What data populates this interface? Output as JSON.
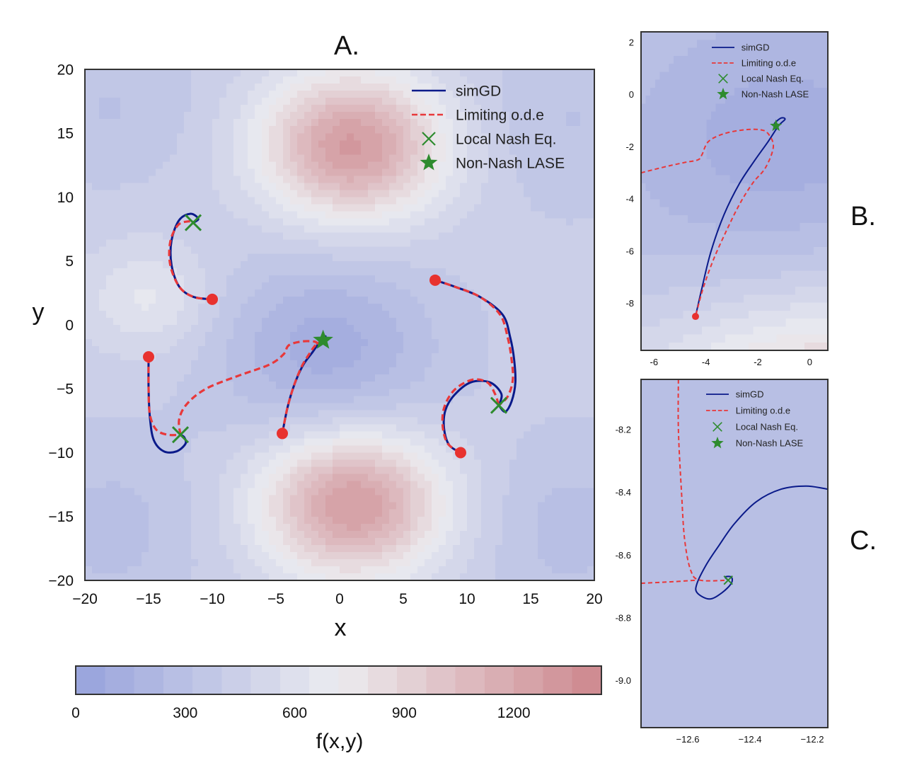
{
  "panel_letters": {
    "a": "A.",
    "b": "B.",
    "c": "C."
  },
  "colors": {
    "simgd": "#0a1a8a",
    "ode": "#e8383a",
    "nash": "#2e8b2e",
    "start": "#e8322f",
    "low": "#9ba6dd",
    "high": "#cf8c92",
    "frame": "#333333"
  },
  "legend": [
    "simGD",
    "Limiting o.d.e",
    "Local Nash Eq.",
    "Non-Nash LASE"
  ],
  "colorbar": {
    "label": "f(x,y)",
    "ticks": [
      0,
      300,
      600,
      900,
      1200
    ],
    "tick_labels": [
      "0",
      "300",
      "600",
      "900",
      "1200"
    ],
    "range": [
      0,
      1440
    ],
    "levels": 18
  },
  "chart_data": [
    {
      "id": "A",
      "type": "contour",
      "title": "A.",
      "xlabel": "x",
      "ylabel": "y",
      "xlim": [
        -20,
        20
      ],
      "ylim": [
        -20,
        20
      ],
      "xticks": [
        -20,
        -15,
        -10,
        -5,
        0,
        5,
        10,
        15,
        20
      ],
      "yticks": [
        -20,
        -15,
        -10,
        -5,
        0,
        5,
        10,
        15,
        20
      ],
      "xtick_labels": [
        "−20",
        "−15",
        "−10",
        "−5",
        "0",
        "5",
        "10",
        "15",
        "20"
      ],
      "ytick_labels": [
        "−20",
        "−15",
        "−10",
        "−5",
        "0",
        "5",
        "10",
        "15",
        "20"
      ],
      "legend": "top-right",
      "trajectories": [
        {
          "start": [
            -10,
            2
          ],
          "end": [
            -11.5,
            8
          ],
          "end_marker": "nash",
          "simgd": [
            [
              -10,
              2
            ],
            [
              -11.5,
              2.2
            ],
            [
              -12.6,
              3
            ],
            [
              -13.2,
              4.7
            ],
            [
              -13.2,
              6.6
            ],
            [
              -12.6,
              8.2
            ],
            [
              -11.7,
              8.7
            ],
            [
              -11.1,
              8.3
            ],
            [
              -11.5,
              8
            ]
          ],
          "ode": [
            [
              -10,
              2
            ],
            [
              -11.5,
              2.2
            ],
            [
              -12.6,
              3
            ],
            [
              -13.3,
              4.7
            ],
            [
              -13.3,
              6.5
            ],
            [
              -12.7,
              7.8
            ],
            [
              -11.9,
              8.1
            ],
            [
              -11.5,
              8
            ]
          ]
        },
        {
          "start": [
            -15,
            -2.5
          ],
          "end": [
            -12.5,
            -8.6
          ],
          "end_marker": "nash",
          "simgd": [
            [
              -15,
              -2.5
            ],
            [
              -15,
              -5
            ],
            [
              -14.9,
              -7.2
            ],
            [
              -14.6,
              -9
            ],
            [
              -13.8,
              -9.9
            ],
            [
              -12.8,
              -9.9
            ],
            [
              -12.1,
              -9.3
            ],
            [
              -12.2,
              -8.8
            ],
            [
              -12.5,
              -8.6
            ]
          ],
          "ode": [
            [
              -15,
              -2.5
            ],
            [
              -15,
              -5
            ],
            [
              -14.9,
              -7
            ],
            [
              -14.4,
              -8.2
            ],
            [
              -13.5,
              -8.6
            ],
            [
              -12.5,
              -8.6
            ]
          ]
        },
        {
          "start": [
            -4.5,
            -8.5
          ],
          "end": [
            -1.3,
            -1.2
          ],
          "end_marker": "lase",
          "simgd": [
            [
              -4.5,
              -8.5
            ],
            [
              -4.1,
              -6.5
            ],
            [
              -3.6,
              -4.8
            ],
            [
              -2.9,
              -3.2
            ],
            [
              -2.1,
              -2.1
            ],
            [
              -1.4,
              -1.1
            ],
            [
              -1.1,
              -0.9
            ],
            [
              -1.3,
              -1.2
            ]
          ],
          "ode": [
            [
              -4.5,
              -8.5
            ],
            [
              -4.1,
              -6.5
            ],
            [
              -3.6,
              -4.8
            ],
            [
              -3,
              -3.3
            ],
            [
              -2.4,
              -2.3
            ],
            [
              -1.9,
              -1.6
            ],
            [
              -1.3,
              -1.2
            ]
          ]
        },
        {
          "start": [
            -12.5,
            -8.6
          ],
          "end": [
            -1.3,
            -1.2
          ],
          "end_marker": "none",
          "simgd": [],
          "ode": [
            [
              -12.5,
              -8.6
            ],
            [
              -12.6,
              -7.4
            ],
            [
              -12,
              -6.2
            ],
            [
              -10.5,
              -5
            ],
            [
              -8,
              -4
            ],
            [
              -5.5,
              -3.1
            ],
            [
              -4.4,
              -2.3
            ],
            [
              -4,
              -1.6
            ],
            [
              -3,
              -1.3
            ],
            [
              -2,
              -1.3
            ],
            [
              -1.6,
              -1.5
            ],
            [
              -1.3,
              -1.2
            ]
          ]
        },
        {
          "start": [
            7.5,
            3.5
          ],
          "end": [
            12.5,
            -6.3
          ],
          "end_marker": "nash",
          "simgd": [
            [
              7.5,
              3.5
            ],
            [
              9,
              3
            ],
            [
              11,
              2.2
            ],
            [
              12.8,
              0.8
            ],
            [
              13.4,
              -1
            ],
            [
              13.7,
              -2.7
            ],
            [
              13.8,
              -4.5
            ],
            [
              13.5,
              -6
            ],
            [
              13,
              -6.8
            ],
            [
              12.5,
              -6.3
            ]
          ],
          "ode": [
            [
              7.5,
              3.5
            ],
            [
              9,
              3
            ],
            [
              11,
              2.2
            ],
            [
              12.6,
              0.8
            ],
            [
              13.2,
              -1
            ],
            [
              13.5,
              -2.7
            ],
            [
              13.6,
              -4.3
            ],
            [
              13.2,
              -5.6
            ],
            [
              12.5,
              -6.3
            ]
          ]
        },
        {
          "start": [
            9.5,
            -10
          ],
          "end": [
            12.5,
            -6.3
          ],
          "end_marker": "none",
          "simgd": [
            [
              9.5,
              -10
            ],
            [
              8.6,
              -9.4
            ],
            [
              8.2,
              -8.1
            ],
            [
              8.3,
              -6.7
            ],
            [
              9,
              -5.5
            ],
            [
              10.3,
              -4.5
            ],
            [
              11.8,
              -4.5
            ],
            [
              12.7,
              -5.4
            ],
            [
              12.5,
              -6.3
            ]
          ],
          "ode": [
            [
              9.5,
              -10
            ],
            [
              8.5,
              -9.3
            ],
            [
              8.1,
              -8
            ],
            [
              8.2,
              -6.5
            ],
            [
              9,
              -5.1
            ],
            [
              10.4,
              -4.3
            ],
            [
              11.6,
              -4.5
            ],
            [
              12.2,
              -5.4
            ],
            [
              12.5,
              -6.3
            ]
          ]
        }
      ]
    },
    {
      "id": "B",
      "type": "contour",
      "title": "B.",
      "xlim": [
        -6.5,
        0.7
      ],
      "ylim": [
        -9.8,
        2.4
      ],
      "xticks": [
        -6,
        -4,
        -2,
        0
      ],
      "yticks": [
        2,
        0,
        -2,
        -4,
        -6,
        -8
      ],
      "xtick_labels": [
        "-6",
        "-4",
        "-2",
        "0"
      ],
      "ytick_labels": [
        "2",
        "0",
        "-2",
        "-4",
        "-6",
        "-8"
      ],
      "legend": "top-right",
      "start": [
        -4.4,
        -8.5
      ],
      "lase": [
        -1.3,
        -1.2
      ],
      "simgd": [
        [
          -4.4,
          -8.5
        ],
        [
          -4.15,
          -7.4
        ],
        [
          -3.8,
          -6
        ],
        [
          -3.3,
          -4.6
        ],
        [
          -2.7,
          -3.4
        ],
        [
          -2.1,
          -2.5
        ],
        [
          -1.6,
          -1.8
        ],
        [
          -1.2,
          -1.2
        ],
        [
          -0.95,
          -0.95
        ],
        [
          -1.1,
          -0.9
        ],
        [
          -1.35,
          -1.1
        ],
        [
          -1.3,
          -1.2
        ]
      ],
      "ode": [
        [
          -6.5,
          -3
        ],
        [
          -5.5,
          -2.75
        ],
        [
          -4.8,
          -2.6
        ],
        [
          -4.3,
          -2.5
        ],
        [
          -4.15,
          -2.3
        ],
        [
          -3.9,
          -1.8
        ],
        [
          -3.3,
          -1.5
        ],
        [
          -2.5,
          -1.35
        ],
        [
          -1.9,
          -1.35
        ],
        [
          -1.6,
          -1.5
        ],
        [
          -1.4,
          -2
        ],
        [
          -1.7,
          -2.8
        ],
        [
          -2.2,
          -3.4
        ],
        [
          -2.7,
          -4.2
        ],
        [
          -3.2,
          -5.2
        ],
        [
          -3.7,
          -6.3
        ],
        [
          -4.1,
          -7.4
        ],
        [
          -4.4,
          -8.5
        ]
      ]
    },
    {
      "id": "C",
      "type": "contour",
      "title": "C.",
      "xlim": [
        -12.75,
        -12.15
      ],
      "ylim": [
        -9.15,
        -8.04
      ],
      "xticks": [
        -12.6,
        -12.4,
        -12.2
      ],
      "yticks": [
        -8.2,
        -8.4,
        -8.6,
        -8.8,
        -9.0
      ],
      "xtick_labels": [
        "−12.6",
        "−12.4",
        "−12.2"
      ],
      "ytick_labels": [
        "-8.2",
        "-8.4",
        "-8.6",
        "-8.8",
        "-9.0"
      ],
      "legend": "top-right",
      "nash": [
        -12.47,
        -8.68
      ],
      "simgd": [
        [
          -12.15,
          -8.39
        ],
        [
          -12.22,
          -8.38
        ],
        [
          -12.3,
          -8.39
        ],
        [
          -12.38,
          -8.43
        ],
        [
          -12.45,
          -8.5
        ],
        [
          -12.5,
          -8.57
        ],
        [
          -12.54,
          -8.63
        ],
        [
          -12.57,
          -8.69
        ],
        [
          -12.57,
          -8.72
        ],
        [
          -12.53,
          -8.74
        ],
        [
          -12.49,
          -8.72
        ],
        [
          -12.46,
          -8.69
        ],
        [
          -12.46,
          -8.67
        ],
        [
          -12.48,
          -8.67
        ],
        [
          -12.47,
          -8.68
        ]
      ],
      "ode": [
        [
          -12.63,
          -8.04
        ],
        [
          -12.63,
          -8.2
        ],
        [
          -12.62,
          -8.4
        ],
        [
          -12.61,
          -8.55
        ],
        [
          -12.59,
          -8.65
        ],
        [
          -12.56,
          -8.68
        ],
        [
          -12.47,
          -8.68
        ]
      ],
      "ode_extra": [
        [
          -12.75,
          -8.69
        ],
        [
          -12.65,
          -8.685
        ],
        [
          -12.57,
          -8.68
        ]
      ]
    }
  ]
}
